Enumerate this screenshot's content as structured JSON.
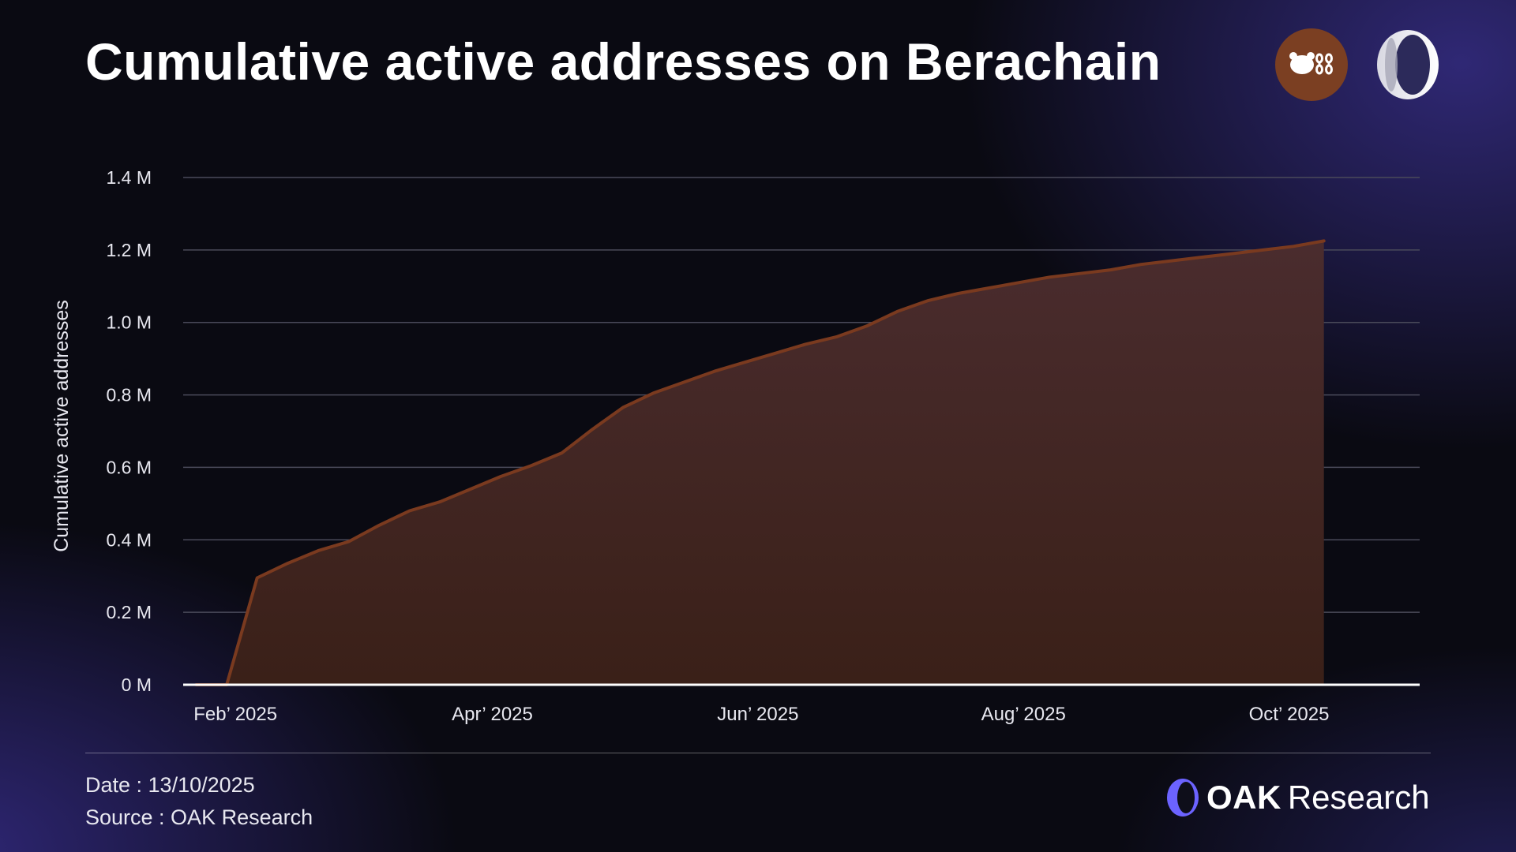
{
  "header": {
    "title": "Cumulative active addresses on Berachain"
  },
  "logos": {
    "berachain_icon": "bear-chain-icon",
    "oak_icon": "oak-ring-icon"
  },
  "footer": {
    "date_label": "Date : 13/10/2025",
    "source_label": "Source : OAK Research",
    "brand_name": "OAK",
    "brand_sub": "Research"
  },
  "colors": {
    "line": "#7a3a1f",
    "area_top": "#4a2c2e",
    "area_bottom": "#3a2018",
    "grid": "#4a4a5a",
    "axis": "#ffffff"
  },
  "chart_data": {
    "type": "area",
    "title": "Cumulative active addresses on Berachain",
    "xlabel": "",
    "ylabel": "Cumulative active addresses",
    "ylim": [
      0,
      1.4
    ],
    "y_ticks": [
      0,
      0.2,
      0.4,
      0.6,
      0.8,
      1.0,
      1.2,
      1.4
    ],
    "y_tick_labels": [
      "0 M",
      "0.2 M",
      "0.4 M",
      "0.6 M",
      "0.8 M",
      "1.0 M",
      "1.2 M",
      "1.4 M"
    ],
    "x_ticks": [
      "2025-02-01",
      "2025-04-01",
      "2025-06-01",
      "2025-08-01",
      "2025-10-01"
    ],
    "x_tick_labels": [
      "Feb’ 2025",
      "Apr’ 2025",
      "Jun’ 2025",
      "Aug’ 2025",
      "Oct’ 2025"
    ],
    "xlim": [
      "2025-01-20",
      "2025-10-31"
    ],
    "grid": true,
    "series": [
      {
        "unit": "M",
        "points": [
          [
            "2025-01-23",
            0.0
          ],
          [
            "2025-01-30",
            0.0
          ],
          [
            "2025-02-06",
            0.295
          ],
          [
            "2025-02-13",
            0.335
          ],
          [
            "2025-02-20",
            0.37
          ],
          [
            "2025-02-27",
            0.395
          ],
          [
            "2025-03-06",
            0.44
          ],
          [
            "2025-03-13",
            0.48
          ],
          [
            "2025-03-20",
            0.505
          ],
          [
            "2025-03-27",
            0.54
          ],
          [
            "2025-04-03",
            0.575
          ],
          [
            "2025-04-10",
            0.605
          ],
          [
            "2025-04-17",
            0.64
          ],
          [
            "2025-04-24",
            0.705
          ],
          [
            "2025-05-01",
            0.765
          ],
          [
            "2025-05-08",
            0.805
          ],
          [
            "2025-05-15",
            0.835
          ],
          [
            "2025-05-22",
            0.865
          ],
          [
            "2025-05-29",
            0.89
          ],
          [
            "2025-06-05",
            0.915
          ],
          [
            "2025-06-12",
            0.94
          ],
          [
            "2025-06-19",
            0.96
          ],
          [
            "2025-06-26",
            0.99
          ],
          [
            "2025-07-03",
            1.03
          ],
          [
            "2025-07-10",
            1.06
          ],
          [
            "2025-07-17",
            1.08
          ],
          [
            "2025-07-24",
            1.095
          ],
          [
            "2025-07-31",
            1.11
          ],
          [
            "2025-08-07",
            1.125
          ],
          [
            "2025-08-14",
            1.135
          ],
          [
            "2025-08-21",
            1.145
          ],
          [
            "2025-08-28",
            1.16
          ],
          [
            "2025-09-04",
            1.17
          ],
          [
            "2025-09-11",
            1.18
          ],
          [
            "2025-09-18",
            1.19
          ],
          [
            "2025-09-25",
            1.2
          ],
          [
            "2025-10-02",
            1.21
          ],
          [
            "2025-10-09",
            1.225
          ]
        ]
      }
    ]
  }
}
